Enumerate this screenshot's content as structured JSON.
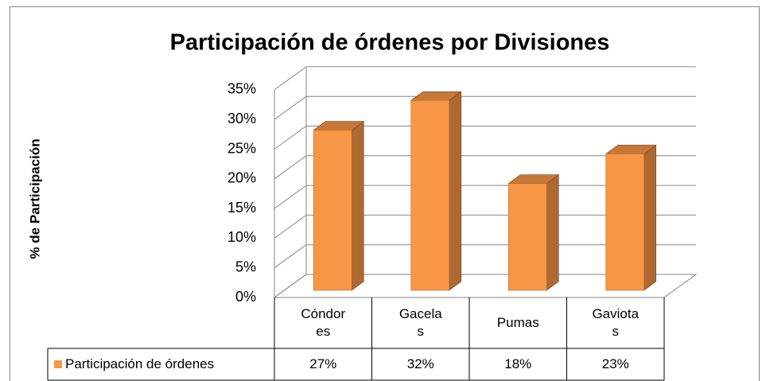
{
  "chart_data": {
    "type": "bar3d",
    "title": "Participación de órdenes por Divisiones",
    "y_label": "% de Participación",
    "categories": [
      "Cóndores",
      "Gacelas",
      "Pumas",
      "Gaviotas"
    ],
    "series": [
      {
        "name": "Participación de órdenes",
        "color": "#f79646",
        "values": [
          27,
          32,
          18,
          23
        ],
        "value_labels": [
          "27%",
          "32%",
          "18%",
          "23%"
        ]
      }
    ],
    "ylim": [
      0,
      35
    ],
    "yticks": [
      {
        "value": 0,
        "label": "0%"
      },
      {
        "value": 5,
        "label": "5%"
      },
      {
        "value": 10,
        "label": "10%"
      },
      {
        "value": 15,
        "label": "15%"
      },
      {
        "value": 20,
        "label": "20%"
      },
      {
        "value": 25,
        "label": "25%"
      },
      {
        "value": 30,
        "label": "30%"
      },
      {
        "value": 35,
        "label": "35%"
      }
    ],
    "grid": true,
    "data_table": true
  }
}
